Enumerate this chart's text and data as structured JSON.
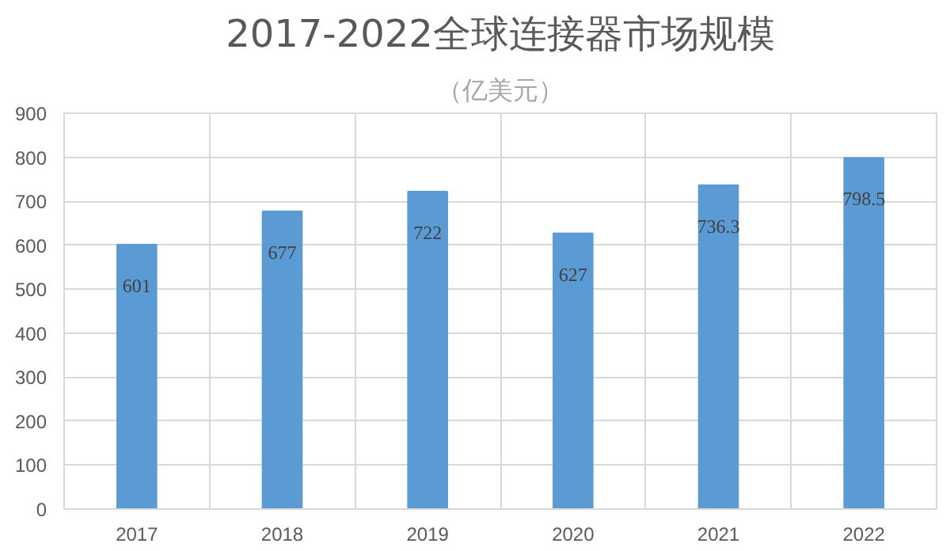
{
  "chart_data": {
    "type": "bar",
    "title": "2017-2022全球连接器市场规模",
    "subtitle": "（亿美元）",
    "categories": [
      "2017",
      "2018",
      "2019",
      "2020",
      "2021",
      "2022"
    ],
    "values": [
      601,
      677,
      722,
      627,
      736.3,
      798.5
    ],
    "color": "#5b9bd5",
    "ylim": [
      0,
      900
    ],
    "yticks": [
      0,
      100,
      200,
      300,
      400,
      500,
      600,
      700,
      800,
      900
    ],
    "grid": true,
    "data_labels": true
  }
}
